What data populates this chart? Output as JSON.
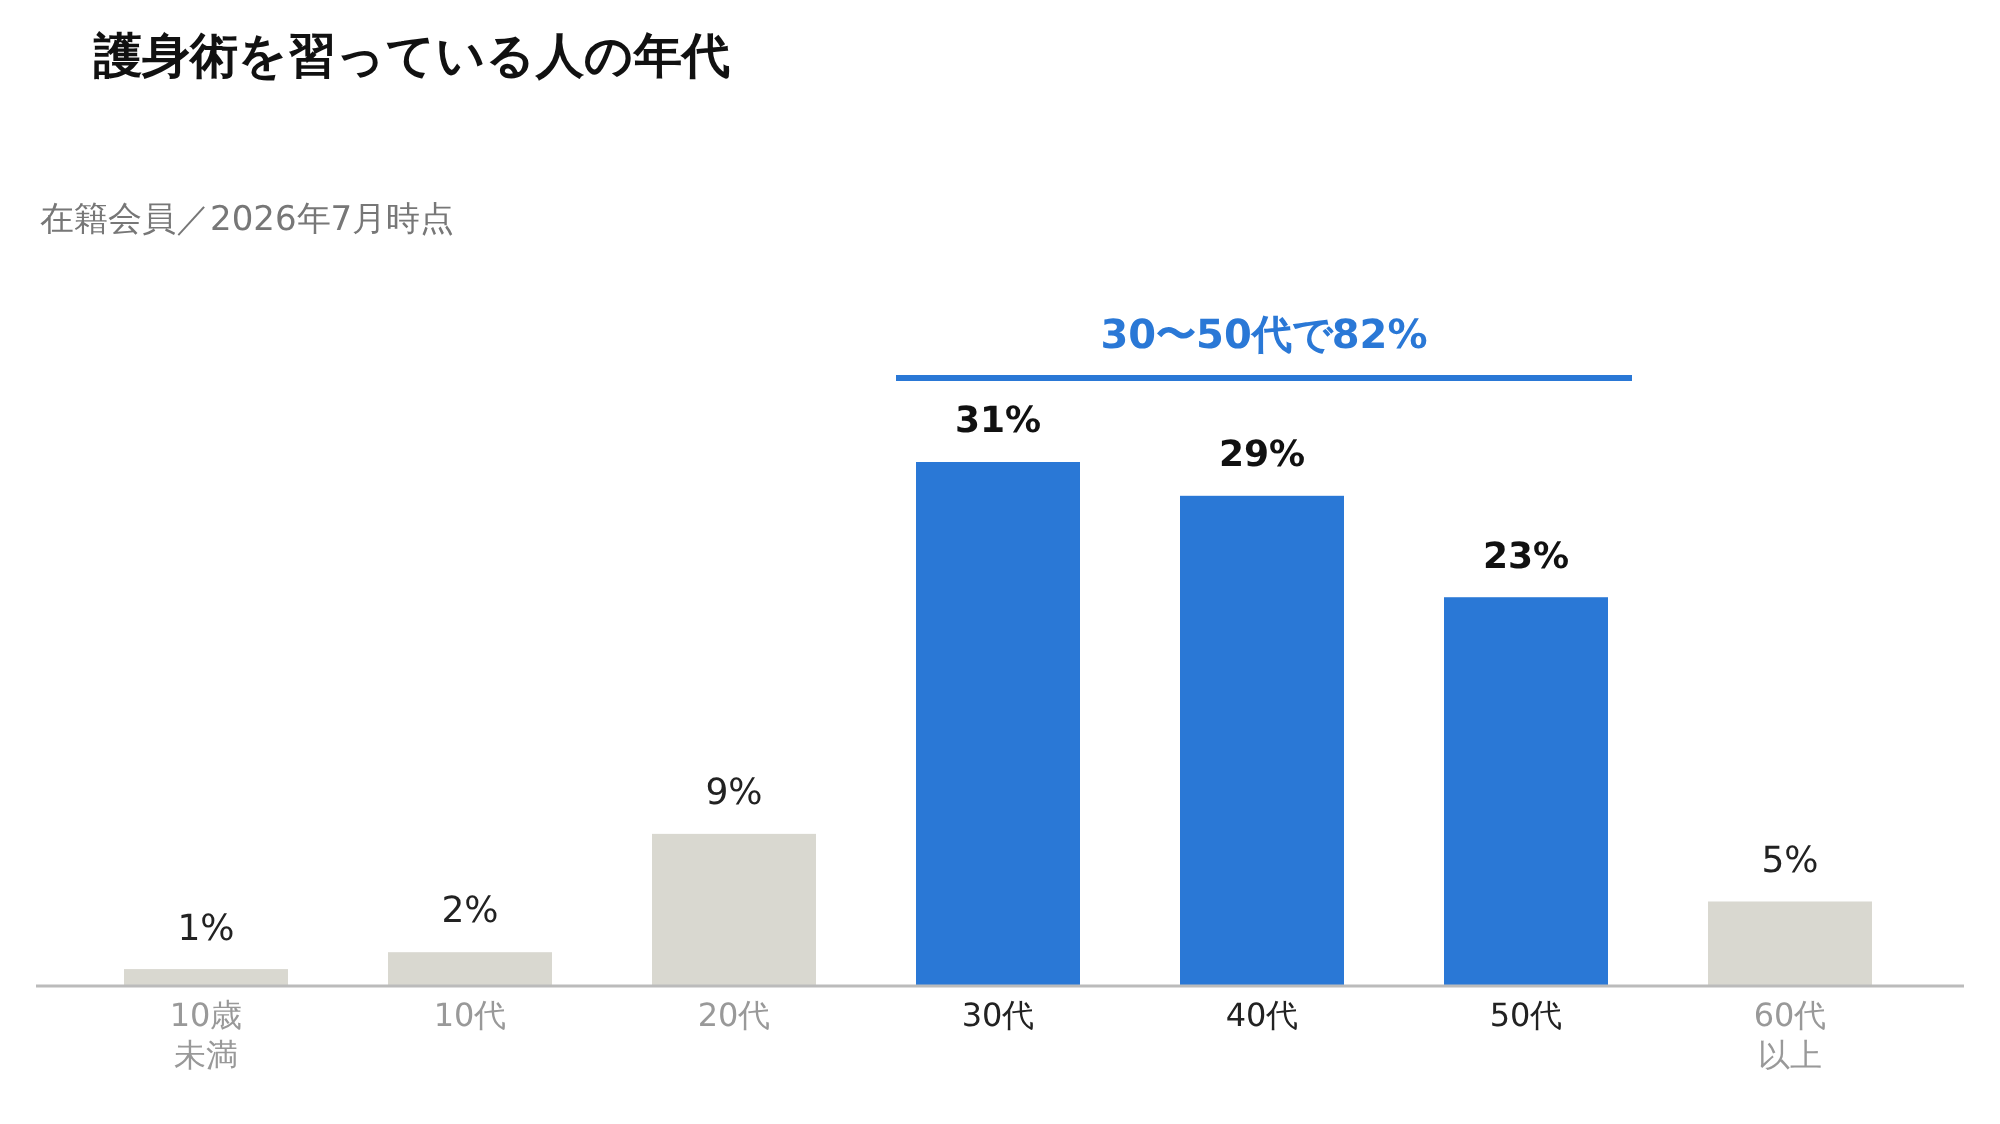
{
  "chart_data": {
    "type": "bar",
    "title": "護身術を習っている人の年代",
    "subtitle": "在籍会員／2026年7月時点",
    "categories": [
      "10歳未満",
      "10代",
      "20代",
      "30代",
      "40代",
      "50代",
      "60代以上"
    ],
    "values": [
      1,
      2,
      9,
      31,
      29,
      23,
      5
    ],
    "colors": [
      "#d9d8d0",
      "#d9d8d0",
      "#d9d8d0",
      "#2a78d6",
      "#2a78d6",
      "#2a78d6",
      "#d9d8d0"
    ],
    "value_labels": [
      "1%",
      "2%",
      "9%",
      "31%",
      "29%",
      "23%",
      "5%"
    ],
    "annotations": [
      "30〜50代で82%"
    ]
  }
}
